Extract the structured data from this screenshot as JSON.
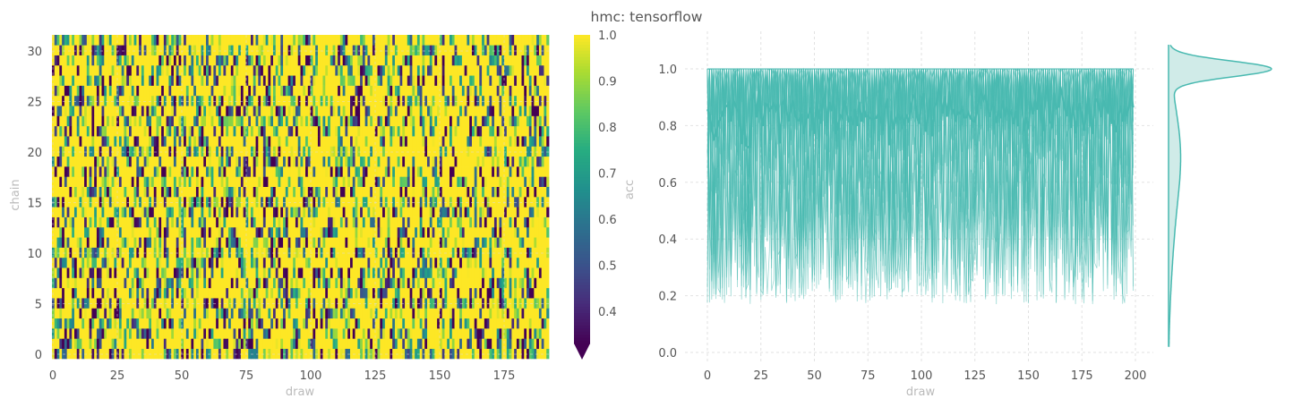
{
  "title": "hmc: tensorflow",
  "colors": {
    "trace": "#48b9b0",
    "kde_fill": "#d0ebe8",
    "grid": "#e2e2e2",
    "tick_text": "#555555",
    "axis_label": "#bbbbbb"
  },
  "chart_data": [
    {
      "type": "heatmap",
      "xlabel": "draw",
      "ylabel": "chain",
      "x_range": [
        0,
        199
      ],
      "y_range": [
        0,
        31
      ],
      "xticks": [
        "0",
        "25",
        "50",
        "75",
        "100",
        "125",
        "150",
        "175"
      ],
      "yticks": [
        "0",
        "5",
        "10",
        "15",
        "20",
        "25",
        "30"
      ],
      "colormap": "viridis",
      "colorbar": {
        "label": "acc",
        "ticks": [
          "0.4",
          "0.5",
          "0.6",
          "0.7",
          "0.8",
          "0.9",
          "1.0"
        ],
        "range": [
          0.33,
          1.0
        ],
        "extend": "min"
      },
      "value_summary": {
        "min": 0.14,
        "max": 1.0,
        "mean": 0.81
      }
    },
    {
      "type": "line",
      "xlabel": "draw",
      "ylabel": "",
      "x_range": [
        0,
        199
      ],
      "ylim": [
        0,
        1.1
      ],
      "xticks": [
        "0",
        "25",
        "50",
        "75",
        "100",
        "125",
        "150",
        "175",
        "200"
      ],
      "yticks": [
        "0.0",
        "0.2",
        "0.4",
        "0.6",
        "0.8",
        "1.0"
      ],
      "grid": true,
      "series_count": 32,
      "mean_line": {
        "approx_value": 0.81,
        "range": [
          0.79,
          0.84
        ]
      },
      "marginal": {
        "type": "kde",
        "orientation": "vertical",
        "peak_at": 1.0,
        "support": [
          0.02,
          1.08
        ]
      }
    }
  ]
}
